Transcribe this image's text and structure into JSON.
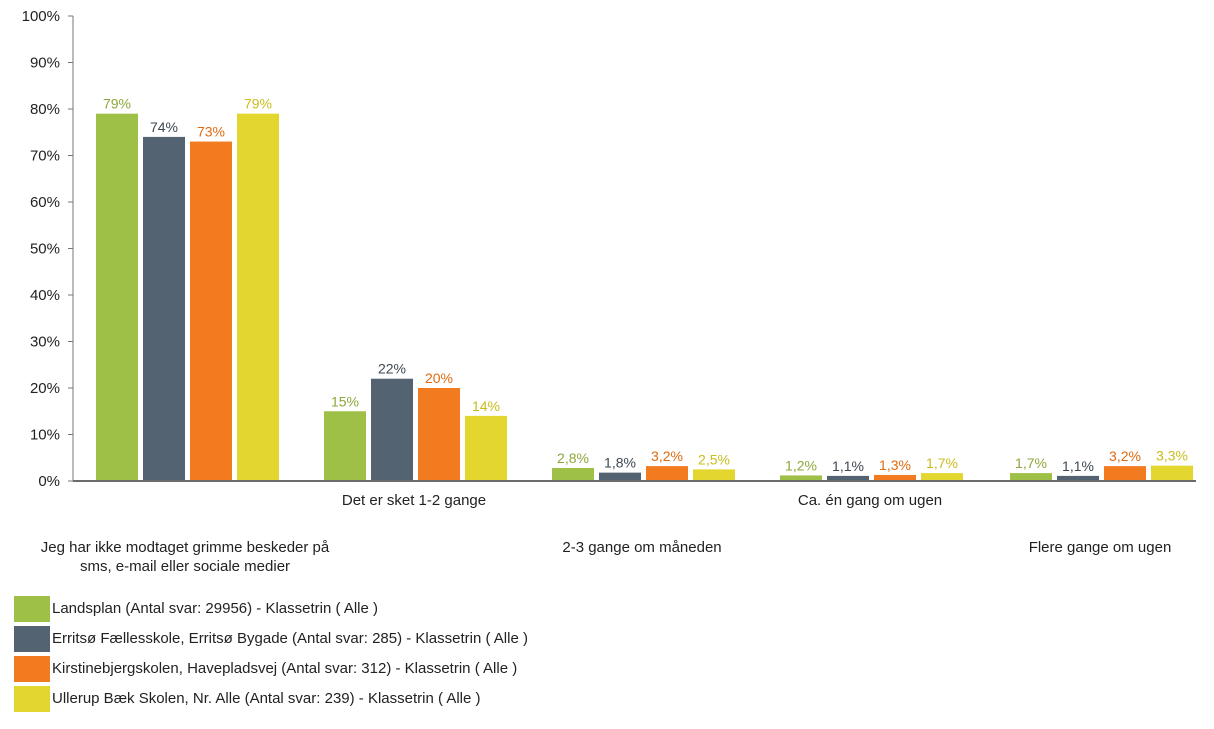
{
  "chart_data": {
    "type": "bar",
    "categories": [
      "Jeg har ikke modtaget grimme beskeder på sms, e-mail eller sociale medier",
      "Det er sket 1-2 gange",
      "2-3 gange om måneden",
      "Ca. én gang om ugen",
      "Flere gange om ugen"
    ],
    "category_lines": [
      [
        "Jeg har ikke modtaget grimme beskeder på",
        "sms, e-mail eller sociale medier"
      ],
      [
        "Det er sket 1-2 gange"
      ],
      [
        "2-3 gange om måneden"
      ],
      [
        "Ca. én gang om ugen"
      ],
      [
        "Flere gange om ugen"
      ]
    ],
    "series": [
      {
        "name": "Landsplan (Antal svar: 29956)  - Klassetrin ( Alle )",
        "color": "#9fc046",
        "label_color": "#8aa83a",
        "values": [
          79,
          15,
          2.8,
          1.2,
          1.7
        ],
        "labels": [
          "79%",
          "15%",
          "2,8%",
          "1,2%",
          "1,7%"
        ]
      },
      {
        "name": "Erritsø Fællesskole, Erritsø Bygade (Antal svar: 285)  - Klassetrin ( Alle )",
        "color": "#546371",
        "label_color": "#3d4751",
        "values": [
          74,
          22,
          1.8,
          1.1,
          1.1
        ],
        "labels": [
          "74%",
          "22%",
          "1,8%",
          "1,1%",
          "1,1%"
        ]
      },
      {
        "name": "Kirstinebjergskolen, Havepladsvej (Antal svar: 312)  - Klassetrin ( Alle )",
        "color": "#f27b1f",
        "label_color": "#e06a10",
        "values": [
          73,
          20,
          3.2,
          1.3,
          3.2
        ],
        "labels": [
          "73%",
          "20%",
          "3,2%",
          "1,3%",
          "3,2%"
        ]
      },
      {
        "name": "Ullerup Bæk Skolen, Nr. Alle (Antal svar: 239)  - Klassetrin ( Alle )",
        "color": "#e2d62f",
        "label_color": "#c9bd1c",
        "values": [
          79,
          14,
          2.5,
          1.7,
          3.3
        ],
        "labels": [
          "79%",
          "14%",
          "2,5%",
          "1,7%",
          "3,3%"
        ]
      }
    ],
    "y_ticks": [
      "0%",
      "10%",
      "20%",
      "30%",
      "40%",
      "50%",
      "60%",
      "70%",
      "80%",
      "90%",
      "100%"
    ],
    "ylim": [
      0,
      100
    ],
    "grid": false,
    "legend_position": "bottom-left"
  }
}
